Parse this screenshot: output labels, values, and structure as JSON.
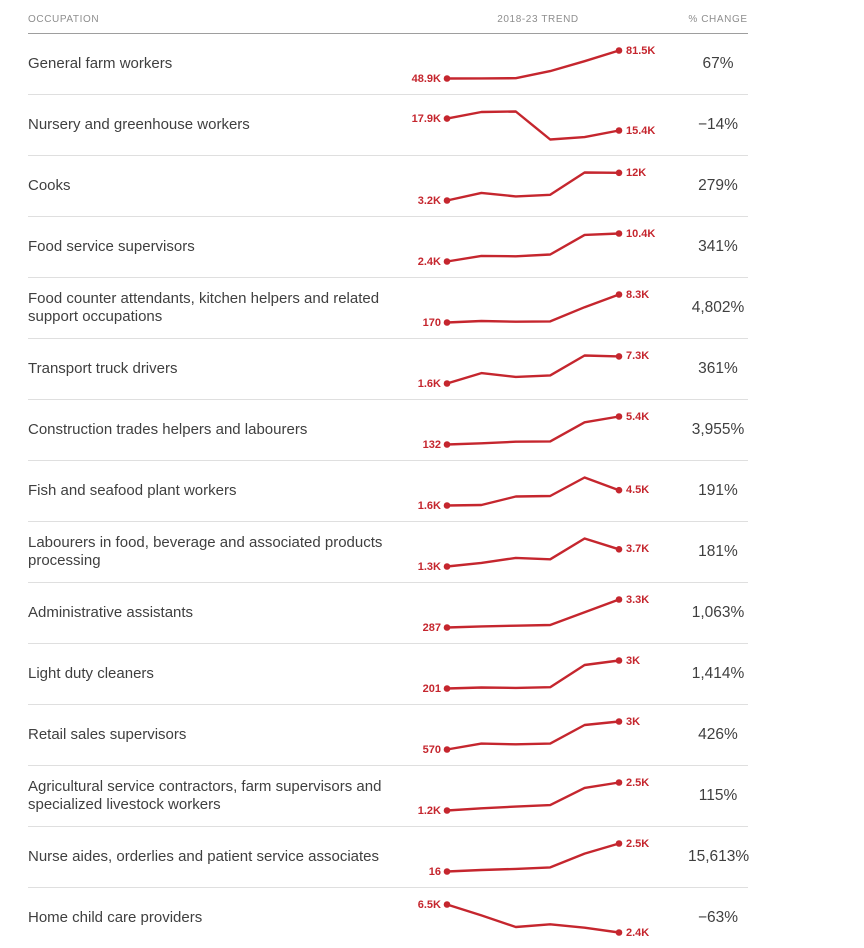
{
  "header": {
    "occupation": "OCCUPATION",
    "trend": "2018-23 TREND",
    "change": "% CHANGE"
  },
  "colors": {
    "accent": "#C5262E",
    "text": "#3F3F3F",
    "header_text": "#8E8E8E",
    "row_divider": "#DFDFDF",
    "header_divider": "#9E9E9E"
  },
  "chart_data": {
    "type": "line",
    "x": [
      2018,
      2019,
      2020,
      2021,
      2022,
      2023
    ],
    "xlabel": "2018-23",
    "grid": false,
    "legend": "none",
    "line_color": "#C5262E",
    "series": [
      {
        "name": "General farm workers",
        "values": [
          48900,
          49000,
          49200,
          57500,
          69000,
          81500
        ],
        "start_label": "48.9K",
        "end_label": "81.5K",
        "pct_change": "67%"
      },
      {
        "name": "Nursery and greenhouse workers",
        "values": [
          17900,
          19300,
          19400,
          13500,
          14000,
          15400
        ],
        "start_label": "17.9K",
        "end_label": "15.4K",
        "pct_change": "−14%"
      },
      {
        "name": "Cooks",
        "values": [
          3200,
          5600,
          4500,
          5000,
          12100,
          12000
        ],
        "start_label": "3.2K",
        "end_label": "12K",
        "pct_change": "279%"
      },
      {
        "name": "Food service supervisors",
        "values": [
          2400,
          4000,
          3900,
          4400,
          10000,
          10400
        ],
        "start_label": "2.4K",
        "end_label": "10.4K",
        "pct_change": "341%"
      },
      {
        "name": "Food counter attendants, kitchen helpers and related support occupations",
        "values": [
          170,
          600,
          400,
          500,
          4600,
          8300
        ],
        "start_label": "170",
        "end_label": "8.3K",
        "pct_change": "4,802%"
      },
      {
        "name": "Transport truck drivers",
        "values": [
          1600,
          3800,
          3000,
          3300,
          7500,
          7300
        ],
        "start_label": "1.6K",
        "end_label": "7.3K",
        "pct_change": "361%"
      },
      {
        "name": "Construction trades helpers and labourers",
        "values": [
          132,
          350,
          660,
          710,
          4300,
          5400
        ],
        "start_label": "132",
        "end_label": "5.4K",
        "pct_change": "3,955%"
      },
      {
        "name": "Fish and seafood plant workers",
        "values": [
          1600,
          1700,
          3300,
          3400,
          6900,
          4500
        ],
        "start_label": "1.6K",
        "end_label": "4.5K",
        "pct_change": "191%"
      },
      {
        "name": "Labourers in food, beverage and associated products processing",
        "values": [
          1300,
          1800,
          2500,
          2300,
          5200,
          3700
        ],
        "start_label": "1.3K",
        "end_label": "3.7K",
        "pct_change": "181%"
      },
      {
        "name": "Administrative assistants",
        "values": [
          287,
          400,
          480,
          560,
          1930,
          3300
        ],
        "start_label": "287",
        "end_label": "3.3K",
        "pct_change": "1,063%"
      },
      {
        "name": "Light duty cleaners",
        "values": [
          201,
          300,
          260,
          330,
          2550,
          3000
        ],
        "start_label": "201",
        "end_label": "3K",
        "pct_change": "1,414%"
      },
      {
        "name": "Retail sales supervisors",
        "values": [
          570,
          1080,
          1020,
          1080,
          2700,
          3000
        ],
        "start_label": "570",
        "end_label": "3K",
        "pct_change": "426%"
      },
      {
        "name": "Agricultural service contractors, farm supervisors and specialized livestock workers",
        "values": [
          1200,
          1300,
          1380,
          1450,
          2250,
          2500
        ],
        "start_label": "1.2K",
        "end_label": "2.5K",
        "pct_change": "115%"
      },
      {
        "name": "Nurse aides, orderlies and patient service associates",
        "values": [
          16,
          150,
          250,
          380,
          1600,
          2500
        ],
        "start_label": "16",
        "end_label": "2.5K",
        "pct_change": "15,613%"
      },
      {
        "name": "Home child care providers",
        "values": [
          6500,
          4900,
          3200,
          3600,
          3100,
          2400
        ],
        "start_label": "6.5K",
        "end_label": "2.4K",
        "pct_change": "−63%"
      }
    ]
  }
}
